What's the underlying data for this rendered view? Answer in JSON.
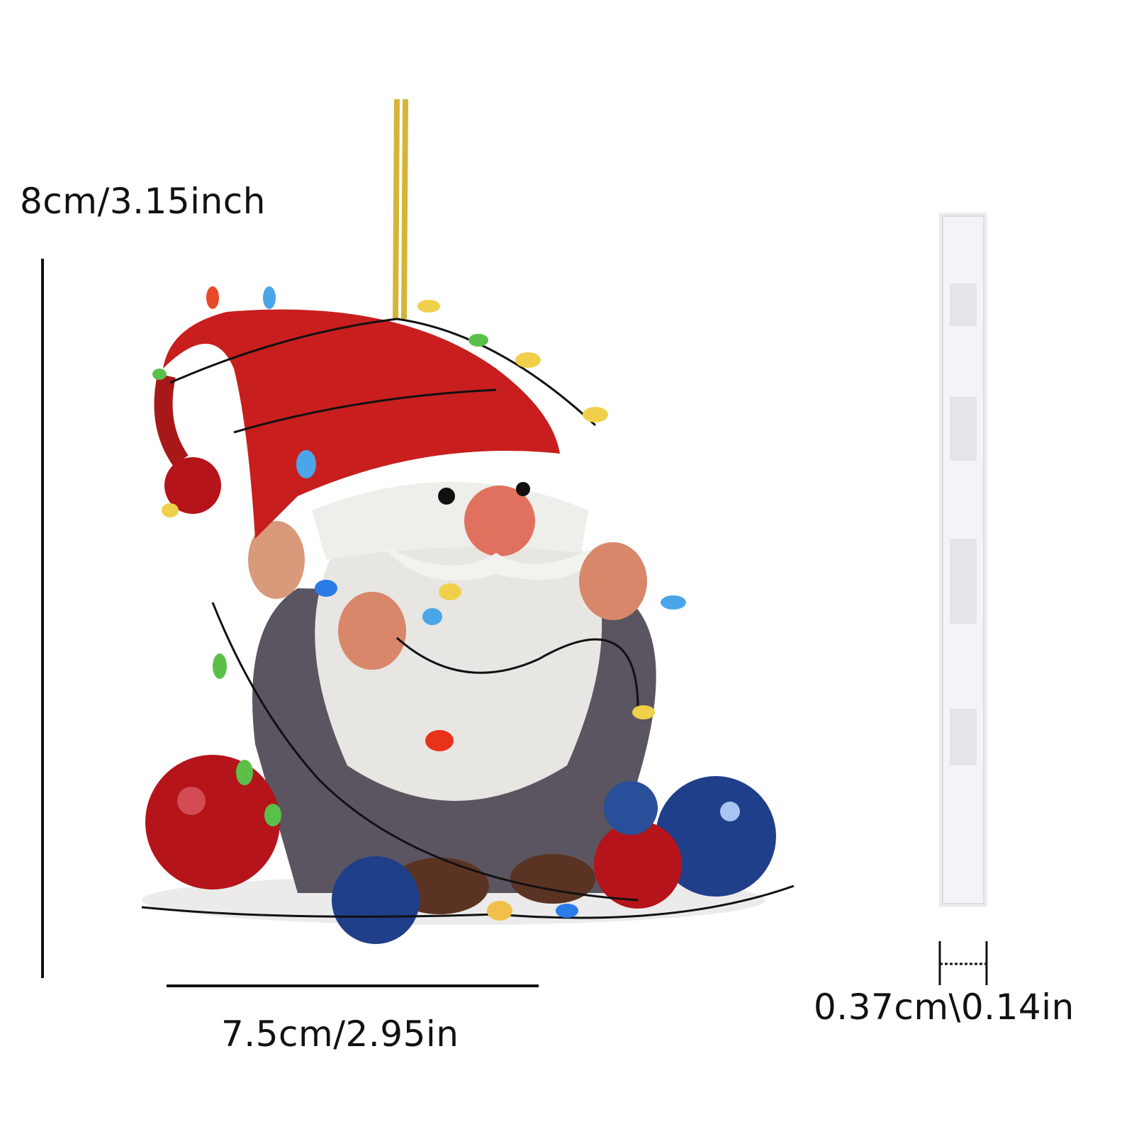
{
  "dimensions": {
    "height_label": "8cm/3.15inch",
    "width_label": "7.5cm/2.95in",
    "thickness_label": "0.37cm\\0.14in"
  },
  "product": {
    "image": "christmas-gnome-ornament-with-lights-and-baubles",
    "colors": {
      "hat": "#c81e1e",
      "beard": "#e8e6e2",
      "ornament_blue": "#1f3f8a",
      "ornament_red": "#b5141a",
      "string": "#d4b537"
    }
  }
}
